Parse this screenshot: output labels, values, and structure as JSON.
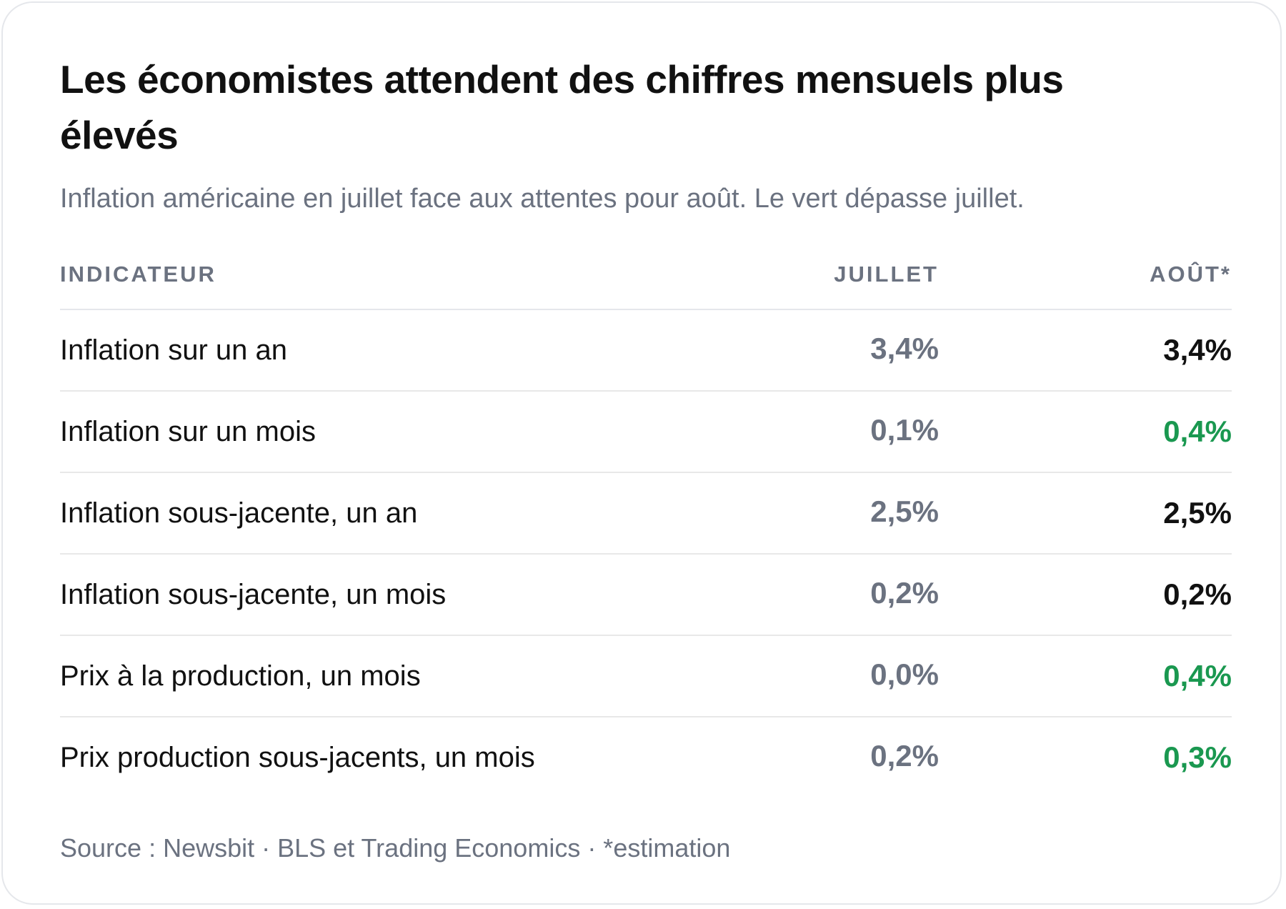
{
  "title": "Les économistes attendent des chiffres mensuels plus élevés",
  "subtitle": "Inflation américaine en juillet face aux attentes pour août. Le vert dépasse juillet.",
  "source": "Source : Newsbit · BLS et Trading Economics · *estimation",
  "colors": {
    "above_july": "#1a9850",
    "july_value": "#6b7280",
    "unchanged": "#111111"
  },
  "chart_data": {
    "type": "table",
    "columns": [
      "INDICATEUR",
      "JUILLET",
      "AOÛT*"
    ],
    "rows": [
      {
        "indicator": "Inflation sur un an",
        "july": "3,4%",
        "august": "3,4%",
        "above_july": false
      },
      {
        "indicator": "Inflation sur un mois",
        "july": "0,1%",
        "august": "0,4%",
        "above_july": true
      },
      {
        "indicator": "Inflation sous-jacente, un an",
        "july": "2,5%",
        "august": "2,5%",
        "above_july": false
      },
      {
        "indicator": "Inflation sous-jacente, un mois",
        "july": "0,2%",
        "august": "0,2%",
        "above_july": false
      },
      {
        "indicator": "Prix à la production, un mois",
        "july": "0,0%",
        "august": "0,4%",
        "above_july": true
      },
      {
        "indicator": "Prix production sous-jacents, un mois",
        "july": "0,2%",
        "august": "0,3%",
        "above_july": true
      }
    ]
  }
}
